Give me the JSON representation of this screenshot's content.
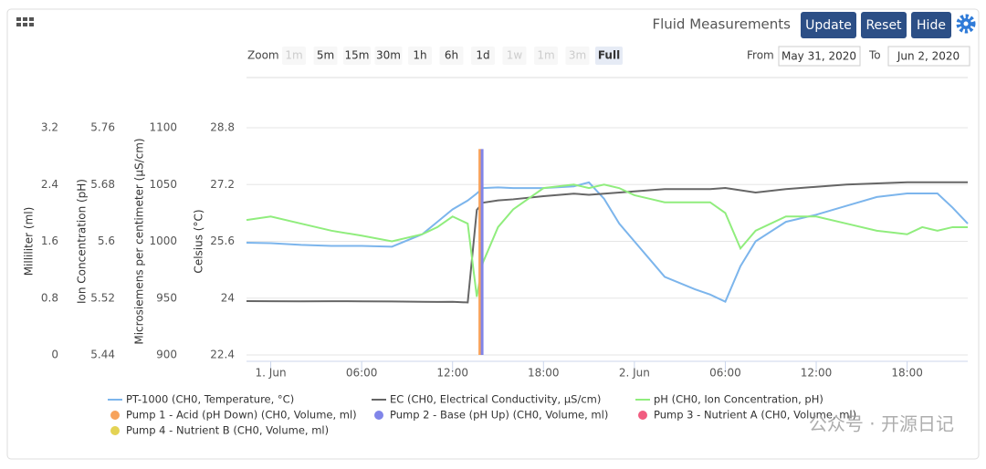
{
  "header": {
    "title": "Fluid Measurements",
    "buttons": [
      "Update",
      "Reset",
      "Hide"
    ]
  },
  "zoom": {
    "label": "Zoom",
    "buttons": [
      {
        "label": "1m",
        "state": "disabled"
      },
      {
        "label": "5m",
        "state": "enabled"
      },
      {
        "label": "15m",
        "state": "enabled"
      },
      {
        "label": "30m",
        "state": "enabled"
      },
      {
        "label": "1h",
        "state": "enabled"
      },
      {
        "label": "6h",
        "state": "enabled"
      },
      {
        "label": "1d",
        "state": "enabled"
      },
      {
        "label": "1w",
        "state": "disabled"
      },
      {
        "label": "1m",
        "state": "disabled"
      },
      {
        "label": "3m",
        "state": "disabled"
      },
      {
        "label": "Full",
        "state": "selected"
      }
    ]
  },
  "range": {
    "from_label": "From",
    "from": "May 31, 2020",
    "to_label": "To",
    "to": "Jun 2, 2020"
  },
  "watermark": "公众号 · 开源日记",
  "chart_data": {
    "type": "line",
    "axes": [
      {
        "title": "Milliliter (ml)",
        "ylim": [
          0,
          3.2
        ],
        "yticks": [
          0,
          0.8,
          1.6,
          2.4,
          3.2
        ]
      },
      {
        "title": "Ion Concentration (pH)",
        "ylim": [
          5.44,
          5.76
        ],
        "yticks": [
          5.44,
          5.52,
          5.6,
          5.68,
          5.76
        ]
      },
      {
        "title": "Microsiemens per centimeter (µS/cm)",
        "ylim": [
          900,
          1100
        ],
        "yticks": [
          900,
          950,
          1000,
          1050,
          1100
        ]
      },
      {
        "title": "Celsius (°C)",
        "ylim": [
          22.4,
          28.8
        ],
        "yticks": [
          22.4,
          24,
          25.6,
          27.2,
          28.8
        ]
      }
    ],
    "xlim": [
      -1.6,
      46
    ],
    "xticks": [
      {
        "value": 0,
        "label": "1. Jun"
      },
      {
        "value": 6,
        "label": "06:00"
      },
      {
        "value": 12,
        "label": "12:00"
      },
      {
        "value": 18,
        "label": "18:00"
      },
      {
        "value": 24,
        "label": "2. Jun"
      },
      {
        "value": 30,
        "label": "06:00"
      },
      {
        "value": 36,
        "label": "12:00"
      },
      {
        "value": 42,
        "label": "18:00"
      }
    ],
    "grid": true,
    "x": [
      -1.6,
      0,
      2,
      4,
      6,
      8,
      10,
      11,
      12,
      13,
      13.6,
      14,
      15,
      16,
      18,
      20,
      21,
      22,
      23,
      24,
      25,
      26,
      28,
      29,
      30,
      31,
      32,
      34,
      36,
      38,
      40,
      42,
      43,
      44,
      45,
      46
    ],
    "series": [
      {
        "name": "PT-1000 (CH0, Temperature, °C)",
        "color": "#7cb5ec",
        "axis": 3,
        "type": "line",
        "values": [
          25.56,
          25.55,
          25.5,
          25.47,
          25.47,
          25.45,
          25.8,
          26.15,
          26.5,
          26.75,
          26.95,
          27.1,
          27.12,
          27.1,
          27.1,
          27.15,
          27.26,
          26.8,
          26.1,
          25.6,
          25.1,
          24.6,
          24.25,
          24.1,
          23.9,
          24.9,
          25.6,
          26.15,
          26.35,
          26.6,
          26.85,
          26.95,
          26.95,
          26.95,
          26.55,
          26.1
        ]
      },
      {
        "name": "EC (CH0, Electrical Conductivity, µS/cm)",
        "color": "#666666",
        "axis": 2,
        "type": "line",
        "values": [
          947.4,
          947.3,
          947.2,
          947.3,
          947.2,
          947.1,
          946.8,
          946.7,
          946.8,
          946.2,
          1027.7,
          1034,
          1036,
          1037,
          1039.8,
          1042,
          1041,
          1042,
          1043,
          1044,
          1045,
          1046,
          1046,
          1046,
          1047,
          1045,
          1043,
          1046,
          1048,
          1050,
          1051,
          1052,
          1052,
          1052,
          1052,
          1052
        ]
      },
      {
        "name": "pH (CH0, Ion Concentration, pH)",
        "color": "#90ed7d",
        "axis": 1,
        "type": "line",
        "values": [
          5.63,
          5.635,
          5.625,
          5.615,
          5.608,
          5.6,
          5.61,
          5.62,
          5.635,
          5.625,
          5.522,
          5.57,
          5.62,
          5.645,
          5.675,
          5.68,
          5.675,
          5.68,
          5.675,
          5.665,
          5.66,
          5.655,
          5.655,
          5.655,
          5.64,
          5.59,
          5.615,
          5.635,
          5.635,
          5.625,
          5.615,
          5.61,
          5.62,
          5.615,
          5.62,
          5.62
        ]
      },
      {
        "name": "Pump 1 - Acid (pH Down) (CH0, Volume, ml)",
        "color": "#f7a35c",
        "axis": 0,
        "type": "column",
        "x": [
          13.8
        ],
        "values": [
          2.9
        ]
      },
      {
        "name": "Pump 2 - Base (pH Up) (CH0, Volume, ml)",
        "color": "#8085e9",
        "axis": 0,
        "type": "column",
        "x": [
          13.95
        ],
        "values": [
          2.9
        ]
      },
      {
        "name": "Pump 3 - Nutrient A (CH0, Volume, ml)",
        "color": "#f15c80",
        "axis": 0,
        "type": "column",
        "x": [],
        "values": []
      },
      {
        "name": "Pump 4 - Nutrient B (CH0, Volume, ml)",
        "color": "#e4d354",
        "axis": 0,
        "type": "column",
        "x": [],
        "values": []
      }
    ]
  }
}
